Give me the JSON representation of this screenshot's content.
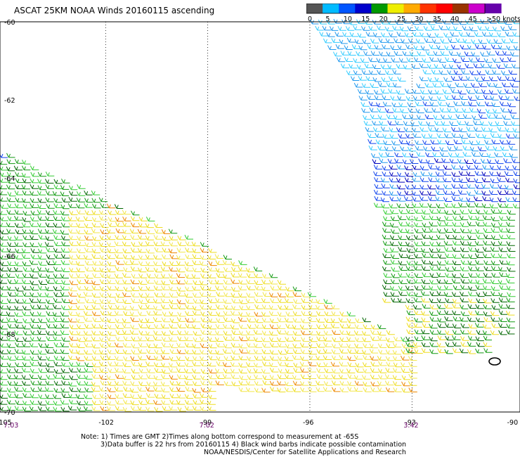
{
  "title": "ASCAT 25KM NOAA Winds 20160115 ascending",
  "legend": {
    "ticks": [
      "0",
      "5",
      "10",
      "15",
      "20",
      "25",
      "30",
      "35",
      "40",
      "45",
      ">50 knots"
    ],
    "colors": [
      "#555555",
      "#00bbff",
      "#0055ff",
      "#0000cc",
      "#009900",
      "#eeee00",
      "#ffaa00",
      "#ff3300",
      "#ff0000",
      "#993300",
      "#cc00cc",
      "#6600aa"
    ]
  },
  "map": {
    "lat_ticks": [
      "-60",
      "-62",
      "-64",
      "-66",
      "-68",
      "-70"
    ],
    "lon_ticks": [
      "-105",
      "-102",
      "-99",
      "-96",
      "-93",
      "-90"
    ],
    "lat_range": [
      -70,
      -60
    ],
    "lon_range": [
      -105,
      -90
    ],
    "gridlines": true,
    "pass_times": [
      {
        "lon": -105,
        "label": "7:03"
      },
      {
        "lon": -99,
        "label": "7:02"
      },
      {
        "lon": -93,
        "label": "3:42"
      }
    ],
    "time_color": "#660066"
  },
  "notes": {
    "line1": "Note: 1) Times are GMT 2)Times along bottom correspond to measurement at -65S",
    "line2": "3)Data buffer is 22 hrs from 20160115 4) Black wind barbs indicate possible contamination",
    "credit": "NOAA/NESDIS/Center for Satellite Applications and Research"
  }
}
